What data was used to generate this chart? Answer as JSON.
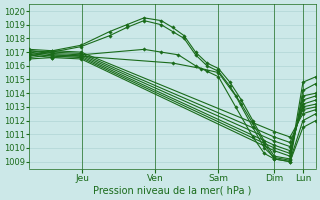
{
  "xlabel": "Pression niveau de la mer( hPa )",
  "bg_color": "#cce8e8",
  "grid_color": "#b0d4d4",
  "line_color": "#1a6b1a",
  "marker": "D",
  "markersize": 1.8,
  "linewidth": 0.8,
  "ylim": [
    1008.5,
    1020.5
  ],
  "yticks": [
    1009,
    1010,
    1011,
    1012,
    1013,
    1014,
    1015,
    1016,
    1017,
    1018,
    1019,
    1020
  ],
  "xlim": [
    0,
    1
  ],
  "day_positions": [
    0.185,
    0.44,
    0.66,
    0.855,
    0.955
  ],
  "day_labels": [
    "Jeu",
    "Ven",
    "Sam",
    "Dim",
    "Lun"
  ],
  "lines": [
    {
      "x": [
        0.0,
        0.08,
        0.18,
        0.28,
        0.34,
        0.4,
        0.46,
        0.5,
        0.54,
        0.58,
        0.62,
        0.66,
        0.7,
        0.74,
        0.78,
        0.82,
        0.855,
        0.91,
        0.955,
        1.0
      ],
      "y": [
        1016.8,
        1017.1,
        1017.5,
        1018.5,
        1019.0,
        1019.5,
        1019.3,
        1018.8,
        1018.2,
        1017.0,
        1016.2,
        1015.8,
        1014.8,
        1013.5,
        1012.0,
        1010.5,
        1009.4,
        1009.2,
        1014.8,
        1015.2
      ]
    },
    {
      "x": [
        0.0,
        0.08,
        0.18,
        0.28,
        0.34,
        0.4,
        0.46,
        0.5,
        0.54,
        0.58,
        0.62,
        0.66,
        0.7,
        0.74,
        0.78,
        0.82,
        0.855,
        0.91,
        0.955,
        1.0
      ],
      "y": [
        1016.7,
        1017.0,
        1017.4,
        1018.2,
        1018.8,
        1019.3,
        1019.0,
        1018.5,
        1018.0,
        1016.8,
        1016.0,
        1015.6,
        1014.5,
        1013.2,
        1011.8,
        1010.3,
        1009.2,
        1009.0,
        1014.2,
        1014.7
      ]
    },
    {
      "x": [
        0.0,
        0.08,
        0.18,
        0.855,
        0.91,
        0.955,
        1.0
      ],
      "y": [
        1016.8,
        1016.6,
        1016.5,
        1009.8,
        1009.4,
        1013.8,
        1014.0
      ]
    },
    {
      "x": [
        0.0,
        0.08,
        0.18,
        0.855,
        0.91,
        0.955,
        1.0
      ],
      "y": [
        1016.9,
        1016.7,
        1016.6,
        1010.0,
        1009.6,
        1013.5,
        1013.8
      ]
    },
    {
      "x": [
        0.0,
        0.08,
        0.18,
        0.855,
        0.91,
        0.955,
        1.0
      ],
      "y": [
        1017.0,
        1016.8,
        1016.7,
        1010.2,
        1009.8,
        1013.2,
        1013.5
      ]
    },
    {
      "x": [
        0.0,
        0.08,
        0.18,
        0.855,
        0.91,
        0.955,
        1.0
      ],
      "y": [
        1017.1,
        1016.9,
        1016.8,
        1010.5,
        1010.1,
        1013.0,
        1013.2
      ]
    },
    {
      "x": [
        0.0,
        0.08,
        0.18,
        0.855,
        0.91,
        0.955,
        1.0
      ],
      "y": [
        1017.1,
        1017.0,
        1016.9,
        1010.8,
        1010.4,
        1012.8,
        1013.0
      ]
    },
    {
      "x": [
        0.0,
        0.08,
        0.18,
        0.855,
        0.91,
        0.955,
        1.0
      ],
      "y": [
        1017.2,
        1017.1,
        1017.0,
        1011.2,
        1010.8,
        1012.5,
        1012.8
      ]
    },
    {
      "x": [
        0.0,
        0.08,
        0.18,
        0.5,
        0.6,
        0.66,
        0.72,
        0.78,
        0.82,
        0.855,
        0.91,
        0.955,
        1.0
      ],
      "y": [
        1016.6,
        1016.8,
        1016.7,
        1016.2,
        1015.8,
        1015.5,
        1013.8,
        1011.5,
        1010.0,
        1009.3,
        1009.1,
        1012.0,
        1012.5
      ]
    },
    {
      "x": [
        0.0,
        0.08,
        0.18,
        0.4,
        0.46,
        0.52,
        0.58,
        0.62,
        0.66,
        0.72,
        0.78,
        0.82,
        0.855,
        0.91,
        0.955,
        1.0
      ],
      "y": [
        1016.5,
        1016.6,
        1016.8,
        1017.2,
        1017.0,
        1016.8,
        1016.0,
        1015.6,
        1015.2,
        1013.0,
        1010.8,
        1009.6,
        1009.2,
        1009.0,
        1011.5,
        1012.0
      ]
    }
  ]
}
